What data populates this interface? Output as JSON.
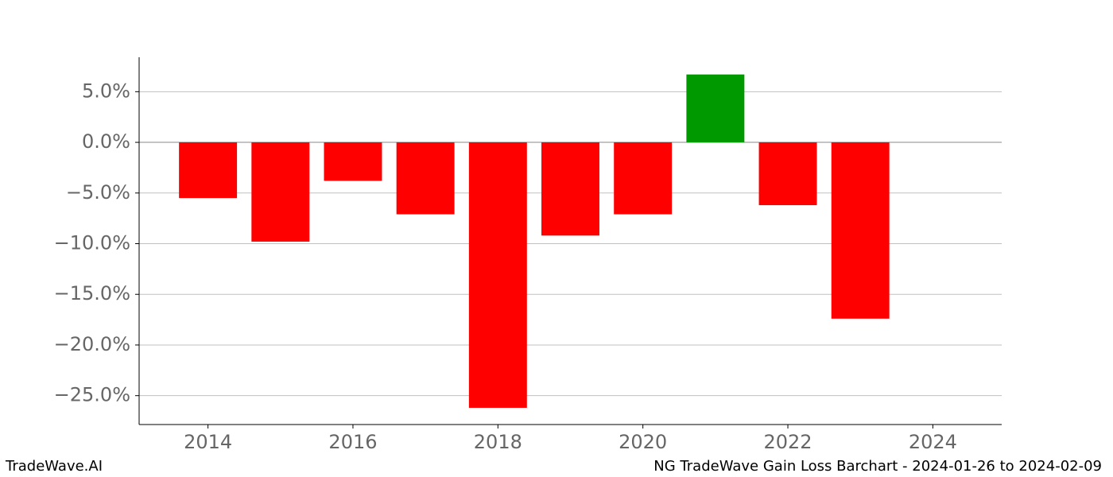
{
  "chart_data": {
    "type": "bar",
    "x": [
      2014,
      2015,
      2016,
      2017,
      2018,
      2019,
      2020,
      2021,
      2022,
      2023
    ],
    "values": [
      -5.5,
      -9.8,
      -3.8,
      -7.1,
      -26.2,
      -9.2,
      -7.1,
      6.7,
      -6.2,
      -17.4
    ],
    "colors": [
      "#ff0000",
      "#ff0000",
      "#ff0000",
      "#ff0000",
      "#ff0000",
      "#ff0000",
      "#ff0000",
      "#009900",
      "#ff0000",
      "#ff0000"
    ],
    "xlim": [
      2013.05,
      2024.95
    ],
    "xticks": [
      2014,
      2016,
      2018,
      2020,
      2022,
      2024
    ],
    "ylim": [
      -27.85,
      8.4
    ],
    "yticks": [
      {
        "value": 5,
        "label": "5.0%"
      },
      {
        "value": 0,
        "label": "0.0%"
      },
      {
        "value": -5,
        "label": "−5.0%"
      },
      {
        "value": -10,
        "label": "−10.0%"
      },
      {
        "value": -15,
        "label": "−15.0%"
      },
      {
        "value": -20,
        "label": "−20.0%"
      },
      {
        "value": -25,
        "label": "−25.0%"
      }
    ],
    "grid": true,
    "footer_left": "TradeWave.AI",
    "footer_right": "NG TradeWave Gain Loss Barchart - 2024-01-26 to 2024-02-09"
  }
}
